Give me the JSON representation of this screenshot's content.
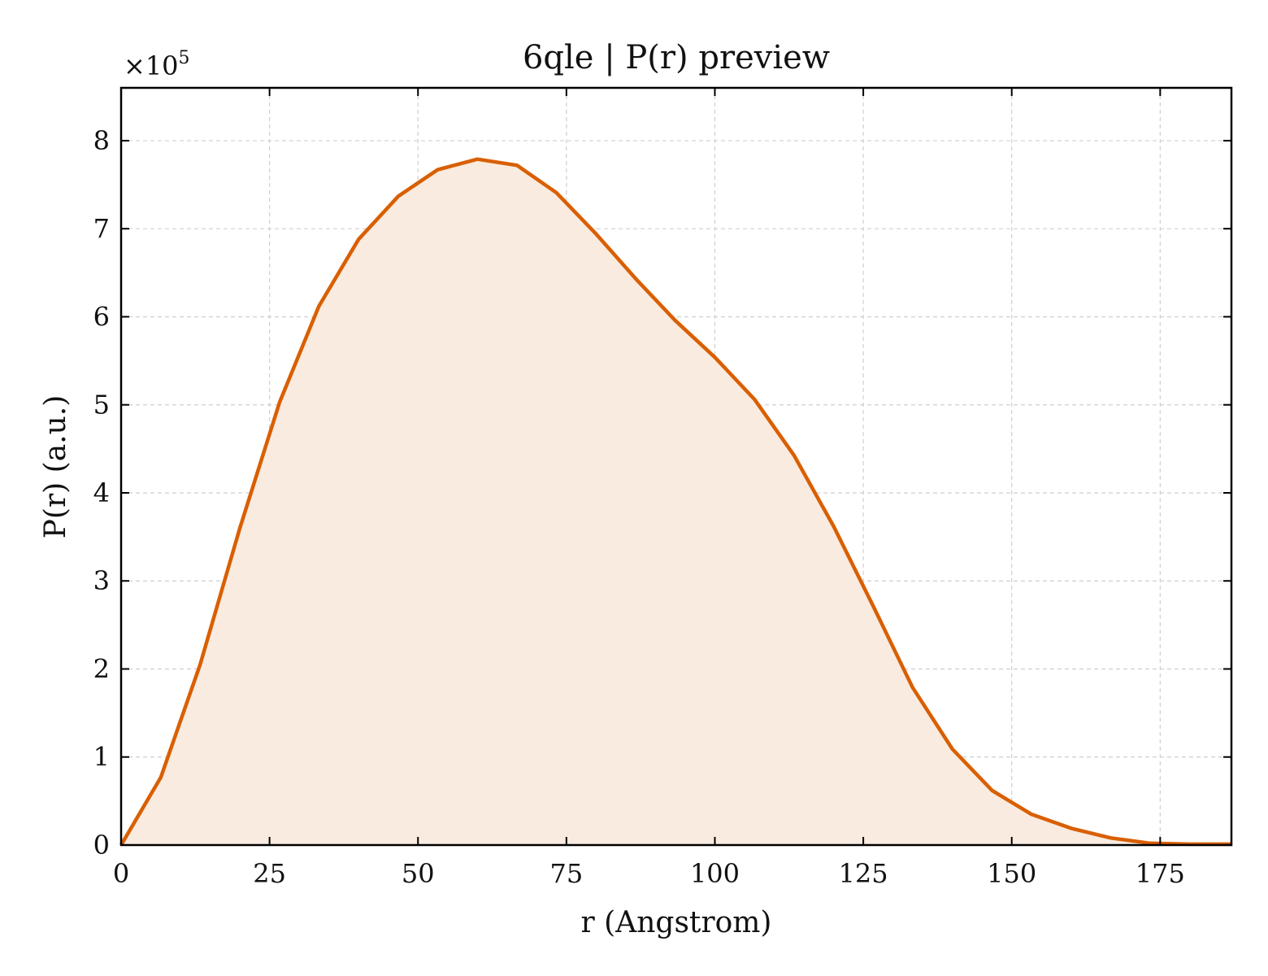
{
  "chart_data": {
    "type": "area",
    "title": "6qle | P(r) preview",
    "xlabel": "r (Angstrom)",
    "ylabel": "P(r) (a.u.)",
    "y_multiplier_label": "×10",
    "y_multiplier_exponent": "5",
    "xlim": [
      0,
      187
    ],
    "ylim": [
      0,
      8.6
    ],
    "x_ticks": [
      0,
      25,
      50,
      75,
      100,
      125,
      150,
      175
    ],
    "y_ticks": [
      0,
      1,
      2,
      3,
      4,
      5,
      6,
      7,
      8
    ],
    "grid": true,
    "line_color": "#d95f02",
    "fill_color": "#f9ebe0",
    "series": [
      {
        "x": [
          0,
          6.7,
          13.3,
          20,
          26.7,
          33.3,
          40,
          46.7,
          53.3,
          60,
          66.7,
          73.3,
          80,
          86.7,
          93.3,
          100,
          106.7,
          113.3,
          120,
          126.7,
          133.3,
          140,
          146.7,
          153.3,
          160,
          166.7,
          173.3,
          180,
          187
        ],
        "y": [
          0,
          0.77,
          2.05,
          3.6,
          5.03,
          6.12,
          6.88,
          7.37,
          7.67,
          7.79,
          7.72,
          7.41,
          6.94,
          6.43,
          5.96,
          5.54,
          5.06,
          4.43,
          3.62,
          2.71,
          1.79,
          1.09,
          0.62,
          0.35,
          0.19,
          0.08,
          0.02,
          0.01,
          0.01
        ]
      }
    ]
  }
}
